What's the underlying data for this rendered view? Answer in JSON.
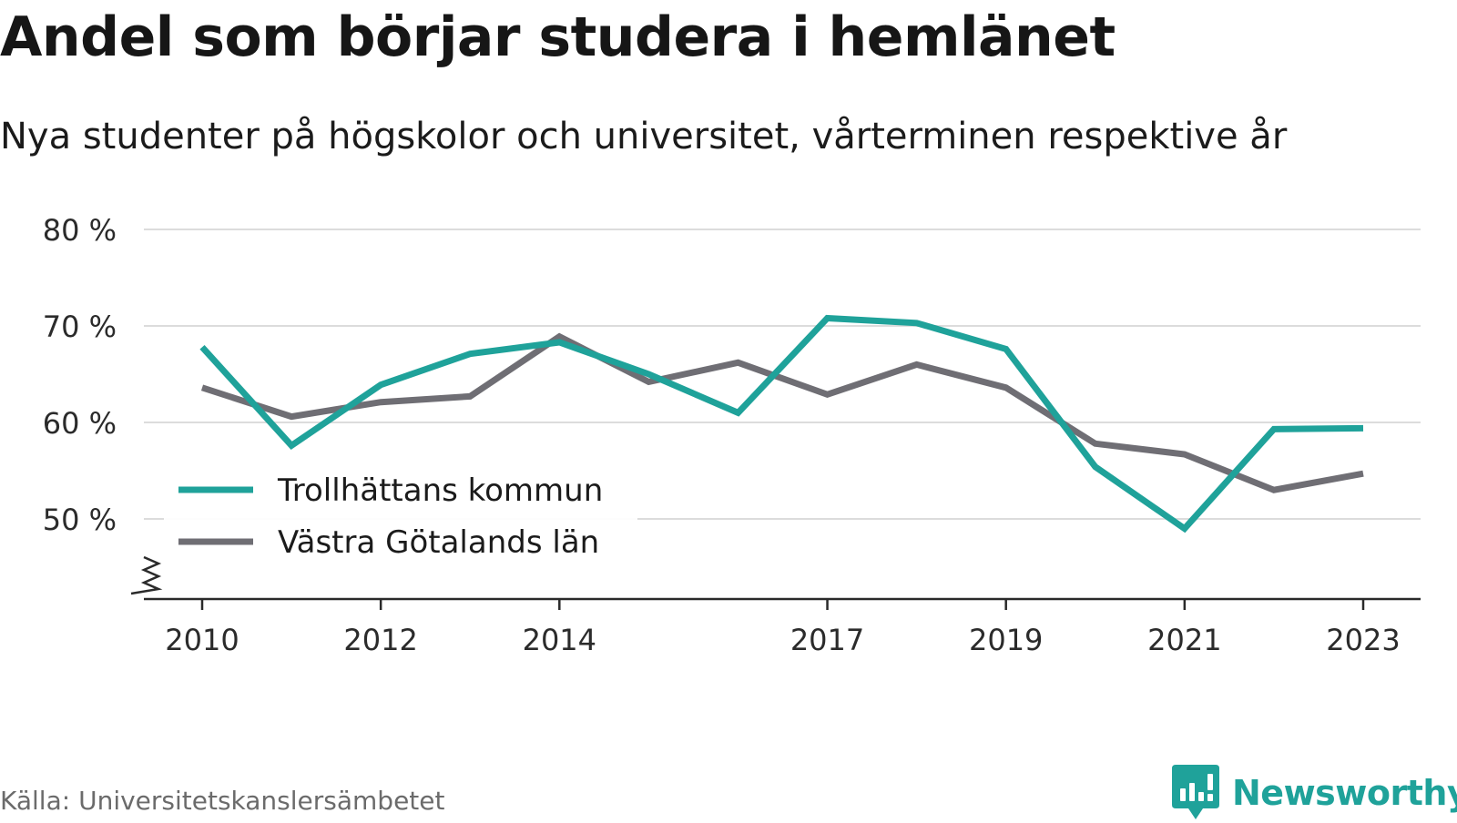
{
  "header": {
    "title": "Andel som börjar studera i hemlänet",
    "subtitle": "Nya studenter på högskolor och universitet, vårterminen respektive år"
  },
  "footer": {
    "source": "Källa: Universitetskanslersämbetet",
    "brand": "Newsworthy",
    "brand_icon": "newsworthy-logo-icon",
    "brand_color": "#1fa29a"
  },
  "chart_data": {
    "type": "line",
    "title": "Andel som börjar studera i hemlänet",
    "subtitle": "Nya studenter på högskolor och universitet, vårterminen respektive år",
    "xlabel": "",
    "ylabel": "",
    "x": [
      2010,
      2011,
      2012,
      2013,
      2014,
      2015,
      2016,
      2017,
      2018,
      2019,
      2020,
      2021,
      2022,
      2023
    ],
    "x_ticks": [
      2010,
      2012,
      2014,
      2017,
      2019,
      2021,
      2023
    ],
    "y_ticks": [
      50,
      60,
      70,
      80
    ],
    "y_tick_labels": [
      "50 %",
      "60 %",
      "70 %",
      "80 %"
    ],
    "y_unit": "%",
    "ylim": [
      41.5,
      80
    ],
    "y_axis_break": true,
    "grid": true,
    "legend_position": "lower-left",
    "series": [
      {
        "name": "Trollhättans kommun",
        "color": "#1fa29a",
        "values": [
          67.8,
          57.6,
          63.9,
          67.1,
          68.3,
          65.0,
          61.0,
          70.8,
          70.3,
          67.6,
          55.4,
          49.0,
          59.3,
          59.4
        ]
      },
      {
        "name": "Västra Götalands län",
        "color": "#6f6e74",
        "values": [
          63.6,
          60.6,
          62.1,
          62.7,
          68.9,
          64.2,
          66.2,
          62.9,
          66.0,
          63.6,
          57.8,
          56.7,
          53.0,
          54.7
        ]
      }
    ]
  }
}
